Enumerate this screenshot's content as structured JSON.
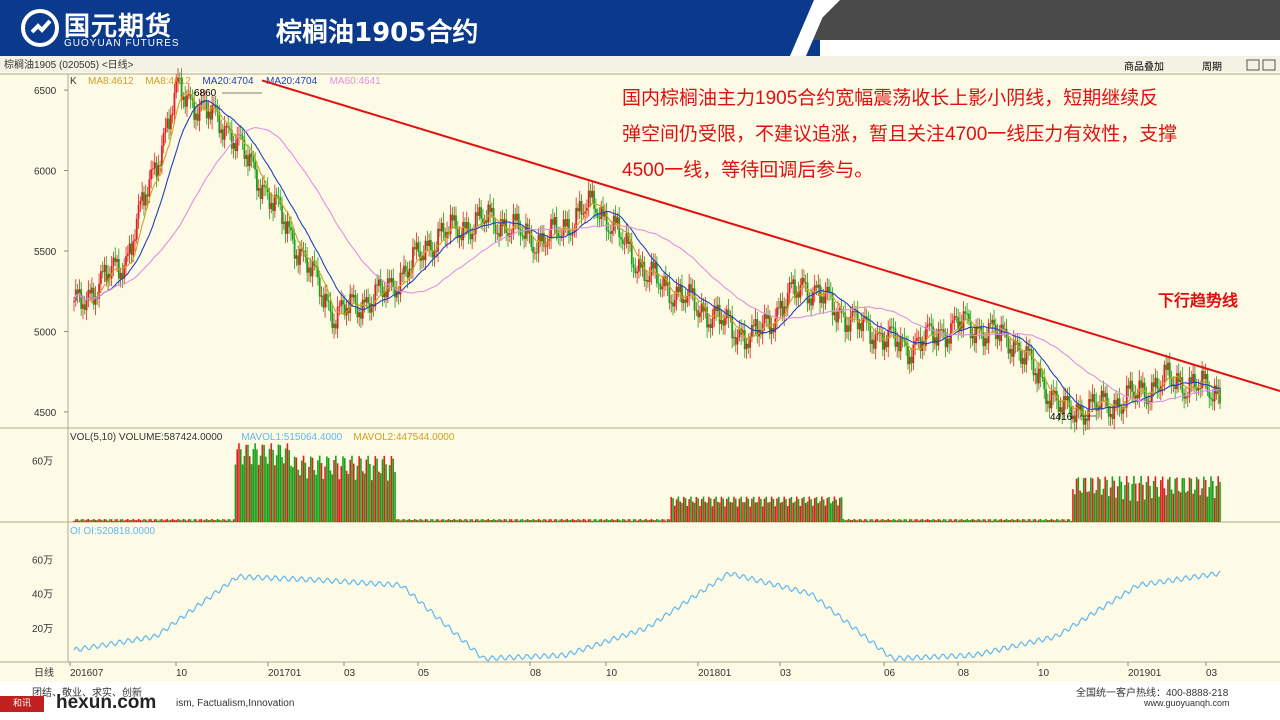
{
  "header": {
    "brand_cn": "国元期货",
    "brand_en": "GUOYUAN FUTURES",
    "title": "棕榈油1905合约"
  },
  "toolbar": {
    "symbol": "棕榈油1905 (020505) <日线>",
    "buttons": [
      "商品叠加",
      "周期"
    ]
  },
  "price_panel": {
    "ma_legend": [
      "K",
      "MA8:4612",
      "MA8:4612",
      "MA20:4704",
      "MA20:4704",
      "MA60:4641"
    ],
    "high_label": "6860",
    "low_label": "4416",
    "trend_label": "下行趋势线",
    "commentary": "国内棕榈油主力1905合约宽幅震荡收长上影小阴线，短期继续反弹空间仍受限，不建议追涨，暂且关注4700一线压力有效性，支撑4500一线，等待回调后参与。"
  },
  "volume_panel": {
    "legend": [
      "VOL(5,10) VOLUME:587424.0000",
      "MAVOL1:515064.4000",
      "MAVOL2:447544.0000"
    ],
    "tick": "60万"
  },
  "oi_panel": {
    "legend": "OI OI:520818.0000",
    "ticks": [
      "60万",
      "40万",
      "20万"
    ]
  },
  "xaxis": {
    "label": "日线",
    "ticks": [
      "201607",
      "10",
      "201701",
      "03",
      "05",
      "08",
      "10",
      "201801",
      "03",
      "06",
      "08",
      "10",
      "201901",
      "03"
    ]
  },
  "footer": {
    "motto_cn": "团结、敬业、求实、创新",
    "motto_en": "ism, Factualism,Innovation",
    "hotline": "全国统一客户热线：400-8888-218",
    "website": "www.guoyuanqh.com",
    "watermark": "hexun.com"
  },
  "colors": {
    "header_blue": "#0b3a8c",
    "up": "#e02020",
    "down": "#18a018",
    "ma8": "#d0a020",
    "ma20": "#2040c0",
    "ma60": "#e090e0",
    "trend": "#e01010",
    "oi": "#60b8f0"
  },
  "chart_data": {
    "type": "candlestick",
    "x": [
      "201607",
      "10",
      "201701",
      "03",
      "05",
      "08",
      "10",
      "201801",
      "03",
      "06",
      "08",
      "10",
      "201901",
      "03"
    ],
    "price_ylim": [
      4400,
      6600
    ],
    "price_ticks": [
      4500,
      5000,
      5500,
      6000,
      6500
    ],
    "close_trace": [
      [
        "201607",
        5150
      ],
      [
        "10",
        5450
      ],
      [
        "201612",
        6500
      ],
      [
        "201701",
        6250
      ],
      [
        "03",
        5700
      ],
      [
        "05",
        5100
      ],
      [
        "06",
        5250
      ],
      [
        "08",
        5600
      ],
      [
        "09",
        5700
      ],
      [
        "10",
        5550
      ],
      [
        "11",
        5800
      ],
      [
        "201801",
        5350
      ],
      [
        "03",
        5150
      ],
      [
        "05",
        4950
      ],
      [
        "06",
        5300
      ],
      [
        "07",
        5050
      ],
      [
        "08",
        4900
      ],
      [
        "09",
        5050
      ],
      [
        "10",
        4950
      ],
      [
        "11",
        4500
      ],
      [
        "12",
        4550
      ],
      [
        "201901",
        4700
      ],
      [
        "03",
        4620
      ]
    ],
    "high": 6860,
    "low": 4416,
    "trendline": [
      [
        0.16,
        6550
      ],
      [
        1.0,
        4620
      ]
    ],
    "volume_series": [
      {
        "name": "VOL",
        "approx_peak_wan": 78
      },
      {
        "name": "MAVOL1",
        "last": 515064.4
      },
      {
        "name": "MAVOL2",
        "last": 447544.0
      }
    ],
    "oi_series": {
      "name": "OI",
      "last": 520818.0,
      "trace_wan": [
        [
          "201607",
          7
        ],
        [
          "10",
          15
        ],
        [
          "201612",
          50
        ],
        [
          "201701",
          48
        ],
        [
          "03",
          45
        ],
        [
          "05",
          2
        ],
        [
          "08",
          4
        ],
        [
          "10",
          20
        ],
        [
          "201801",
          52
        ],
        [
          "03",
          40
        ],
        [
          "06",
          2
        ],
        [
          "08",
          4
        ],
        [
          "10",
          15
        ],
        [
          "201901",
          45
        ],
        [
          "03",
          52
        ]
      ]
    }
  }
}
